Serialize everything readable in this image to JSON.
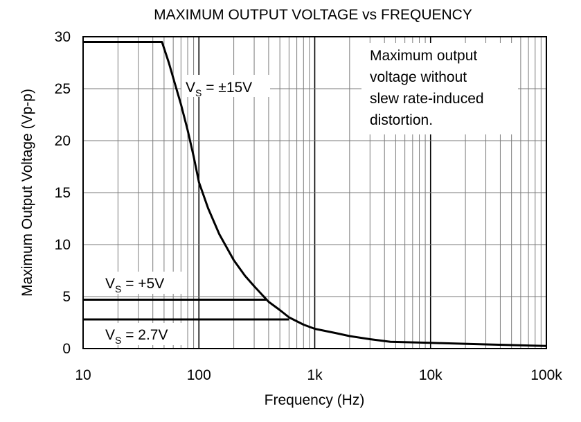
{
  "chart_data": {
    "type": "line",
    "title": "MAXIMUM OUTPUT VOLTAGE vs FREQUENCY",
    "xlabel": "Frequency (Hz)",
    "ylabel": "Maximum Output Voltage (Vp-p)",
    "x_scale": "log",
    "xlim": [
      10,
      100000
    ],
    "ylim": [
      0,
      30
    ],
    "grid": true,
    "x_ticks": [
      10,
      100,
      1000,
      10000,
      100000
    ],
    "x_tick_labels": [
      "10",
      "100",
      "1k",
      "10k",
      "100k"
    ],
    "y_ticks": [
      0,
      5,
      10,
      15,
      20,
      25,
      30
    ],
    "y_tick_labels": [
      "0",
      "5",
      "10",
      "15",
      "20",
      "25",
      "30"
    ],
    "series": [
      {
        "label_main": "V",
        "label_sub": "S",
        "label_rest": " = ±15V",
        "x": [
          10,
          48,
          55,
          62,
          70,
          80,
          90,
          100,
          120,
          150,
          200,
          250,
          300,
          400,
          500,
          600,
          800,
          1000,
          1500,
          2000,
          3000,
          4500,
          10000,
          30000,
          100000
        ],
        "y": [
          29.5,
          29.5,
          27.5,
          25.5,
          23.5,
          21,
          18.5,
          16,
          13.5,
          11,
          8.5,
          7,
          6,
          4.5,
          3.7,
          3,
          2.3,
          1.9,
          1.5,
          1.2,
          0.9,
          0.65,
          0.55,
          0.4,
          0.25
        ]
      },
      {
        "label_main": "V",
        "label_sub": "S",
        "label_rest": " = +5V",
        "x": [
          10,
          380
        ],
        "y": [
          4.7,
          4.7
        ]
      },
      {
        "label_main": "V",
        "label_sub": "S",
        "label_rest": " = 2.7V",
        "x": [
          10,
          600
        ],
        "y": [
          2.8,
          2.8
        ]
      }
    ],
    "annotation_lines": [
      "Maximum output",
      "voltage without",
      "slew rate-induced",
      "distortion."
    ]
  }
}
